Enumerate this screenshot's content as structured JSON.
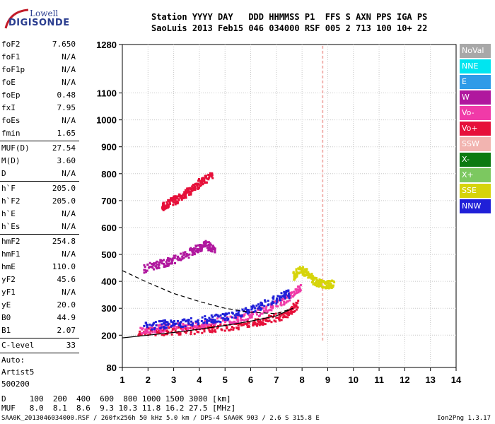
{
  "logo": {
    "line1": "Lowell",
    "line2": "DIGISONDE"
  },
  "header": {
    "labels": [
      "Station",
      "YYYY",
      "DAY",
      "DDD",
      "HHMMSS",
      "P1",
      "FFS",
      "S",
      "AXN",
      "PPS",
      "IGA",
      "PS"
    ],
    "values": [
      "SaoLuis",
      "2013",
      "Feb15",
      "046",
      "034000",
      "RSF",
      "005",
      "2",
      "713",
      "100",
      "10+",
      "22"
    ]
  },
  "params": [
    {
      "name": "foF2",
      "value": "7.650"
    },
    {
      "name": "foF1",
      "value": "N/A"
    },
    {
      "name": "foF1p",
      "value": "N/A"
    },
    {
      "name": "foE",
      "value": "N/A"
    },
    {
      "name": "foEp",
      "value": "0.48"
    },
    {
      "name": "fxI",
      "value": "7.95"
    },
    {
      "name": "foEs",
      "value": "N/A"
    },
    {
      "name": "fmin",
      "value": "1.65"
    },
    {
      "sep": true
    },
    {
      "name": "MUF(D)",
      "value": "27.54"
    },
    {
      "name": "M(D)",
      "value": "3.60"
    },
    {
      "name": "D",
      "value": "N/A"
    },
    {
      "sep": true
    },
    {
      "name": "h`F",
      "value": "205.0"
    },
    {
      "name": "h`F2",
      "value": "205.0"
    },
    {
      "name": "h`E",
      "value": "N/A"
    },
    {
      "name": "h`Es",
      "value": "N/A"
    },
    {
      "sep": true
    },
    {
      "name": "hmF2",
      "value": "254.8"
    },
    {
      "name": "hmF1",
      "value": "N/A"
    },
    {
      "name": "hmE",
      "value": "110.0"
    },
    {
      "name": "yF2",
      "value": "45.6"
    },
    {
      "name": "yF1",
      "value": "N/A"
    },
    {
      "name": "yE",
      "value": "20.0"
    },
    {
      "name": "B0",
      "value": "44.9"
    },
    {
      "name": "B1",
      "value": "2.07"
    },
    {
      "sep": true
    },
    {
      "name": "C-level",
      "value": "33"
    },
    {
      "sep": true
    }
  ],
  "autoscale": [
    "Auto:",
    "Artist5",
    "500200"
  ],
  "legend": [
    {
      "label": "NoVal",
      "color": "#a8a8a8"
    },
    {
      "label": "NNE",
      "color": "#00e5f0"
    },
    {
      "label": "E",
      "color": "#2e9be8"
    },
    {
      "label": "W",
      "color": "#b0179e"
    },
    {
      "label": "Vo-",
      "color": "#f03aa8"
    },
    {
      "label": "Vo+",
      "color": "#e6103a"
    },
    {
      "label": "SSW",
      "color": "#f2b4b0"
    },
    {
      "label": "X-",
      "color": "#0c7a10"
    },
    {
      "label": "X+",
      "color": "#7cc860"
    },
    {
      "label": "SSE",
      "color": "#d6d40a"
    },
    {
      "label": "NNW",
      "color": "#2020d8"
    }
  ],
  "footer": {
    "d_label": "D",
    "d_values": [
      "100",
      "200",
      "400",
      "600",
      "800",
      "1000",
      "1500",
      "3000",
      "[km]"
    ],
    "muf_label": "MUF",
    "muf_values": [
      "8.0",
      "8.1",
      "8.6",
      "9.3",
      "10.3",
      "11.8",
      "16.2",
      "27.5",
      "[MHz]"
    ],
    "file_line": "SAA0K_2013046034000.RSF / 260fx256h 50 kHz 5.0 km / DPS-4 SAA0K 903 / 2.6 S 315.8 E",
    "version": "Ion2Png 1.3.17"
  },
  "chart_data": {
    "type": "scatter",
    "xlim": [
      1,
      14
    ],
    "ylim": [
      80,
      1280
    ],
    "x_ticks": [
      1,
      2,
      3,
      4,
      5,
      6,
      7,
      8,
      9,
      10,
      11,
      12,
      13,
      14
    ],
    "y_ticks": [
      80,
      200,
      300,
      400,
      500,
      600,
      700,
      800,
      900,
      1000,
      1100,
      1280
    ],
    "grid": true,
    "traces": [
      {
        "name": "O-trace lower edge",
        "color": "#e6103a",
        "points": [
          [
            1.6,
            215
          ],
          [
            2.5,
            218
          ],
          [
            3.5,
            222
          ],
          [
            4.5,
            228
          ],
          [
            5.5,
            240
          ],
          [
            6.5,
            258
          ],
          [
            7.4,
            282
          ],
          [
            7.8,
            320
          ]
        ]
      },
      {
        "name": "O-trace band",
        "color": "#f03aa8",
        "points": [
          [
            1.7,
            225
          ],
          [
            2.6,
            232
          ],
          [
            3.6,
            238
          ],
          [
            4.6,
            250
          ],
          [
            5.6,
            268
          ],
          [
            6.6,
            300
          ],
          [
            7.4,
            340
          ],
          [
            7.9,
            380
          ]
        ]
      },
      {
        "name": "X-trace",
        "color": "#2020d8",
        "points": [
          [
            1.8,
            238
          ],
          [
            2.8,
            245
          ],
          [
            3.8,
            255
          ],
          [
            4.8,
            268
          ],
          [
            5.8,
            290
          ],
          [
            6.8,
            330
          ],
          [
            7.5,
            360
          ]
        ]
      },
      {
        "name": "Spread F",
        "color": "#d6d40a",
        "points": [
          [
            7.6,
            420
          ],
          [
            7.9,
            450
          ],
          [
            8.2,
            430
          ],
          [
            8.5,
            400
          ],
          [
            8.9,
            390
          ],
          [
            9.2,
            395
          ]
        ]
      },
      {
        "name": "Multi-hop",
        "color": "#b0179e",
        "points": [
          [
            1.8,
            450
          ],
          [
            2.5,
            470
          ],
          [
            3.2,
            490
          ],
          [
            3.8,
            520
          ],
          [
            4.2,
            540
          ],
          [
            4.6,
            520
          ]
        ]
      },
      {
        "name": "Upper echoes",
        "color": "#e6103a",
        "points": [
          [
            2.5,
            680
          ],
          [
            2.9,
            700
          ],
          [
            3.3,
            720
          ],
          [
            3.6,
            740
          ],
          [
            4.0,
            770
          ],
          [
            4.5,
            800
          ]
        ]
      }
    ],
    "profile": {
      "solid": [
        [
          1,
          190
        ],
        [
          2,
          200
        ],
        [
          3,
          210
        ],
        [
          4,
          222
        ],
        [
          5,
          236
        ],
        [
          6,
          252
        ],
        [
          7,
          272
        ],
        [
          7.65,
          300
        ]
      ],
      "dashed": [
        [
          1,
          440
        ],
        [
          2,
          395
        ],
        [
          3,
          355
        ],
        [
          4,
          325
        ],
        [
          5,
          300
        ],
        [
          6,
          285
        ],
        [
          7,
          280
        ],
        [
          7.65,
          300
        ]
      ]
    },
    "ssw_line": {
      "x": 8.8,
      "y_range": [
        180,
        1280
      ]
    }
  }
}
